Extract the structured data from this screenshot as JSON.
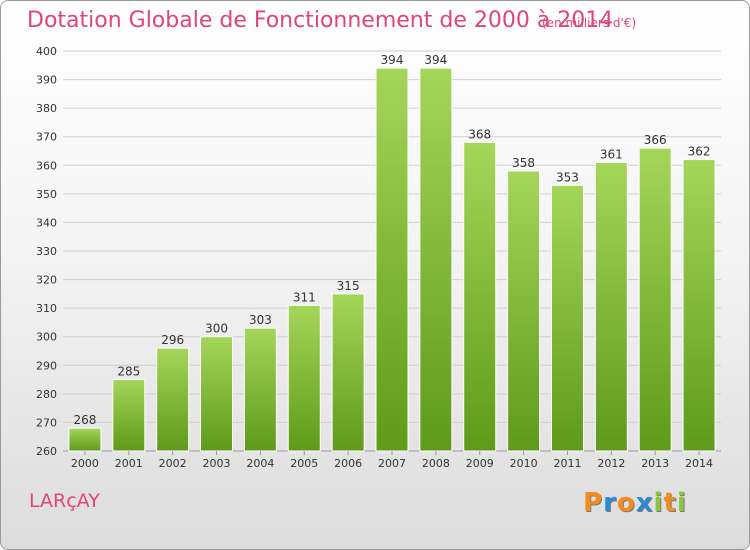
{
  "header": {
    "title": "Dotation Globale de Fonctionnement de 2000 à 2014",
    "unit": "(en milliers d'€)"
  },
  "footer": {
    "place": "LARçAY",
    "logo": "Proxiti"
  },
  "colors": {
    "title": "#e0457a",
    "bar_top": "#a4d65a",
    "bar_bottom": "#5f9a1a",
    "grid": "#cfcfcf",
    "logo_letters": [
      "#f28c1e",
      "#2a8ad2",
      "#f28c1e",
      "#2a8ad2",
      "#8cc63e",
      "#f28c1e",
      "#8cc63e"
    ]
  },
  "chart_data": {
    "type": "bar",
    "categories": [
      "2000",
      "2001",
      "2002",
      "2003",
      "2004",
      "2005",
      "2006",
      "2007",
      "2008",
      "2009",
      "2010",
      "2011",
      "2012",
      "2013",
      "2014"
    ],
    "values": [
      268,
      285,
      296,
      300,
      303,
      311,
      315,
      394,
      394,
      368,
      358,
      353,
      361,
      366,
      362
    ],
    "title": "Dotation Globale de Fonctionnement de 2000 à 2014",
    "subtitle": "(en milliers d'€)",
    "xlabel": "",
    "ylabel": "",
    "ylim": [
      260,
      400
    ],
    "yticks": [
      260,
      270,
      280,
      290,
      300,
      310,
      320,
      330,
      340,
      350,
      360,
      370,
      380,
      390,
      400
    ],
    "grid": true,
    "legend": "none"
  }
}
